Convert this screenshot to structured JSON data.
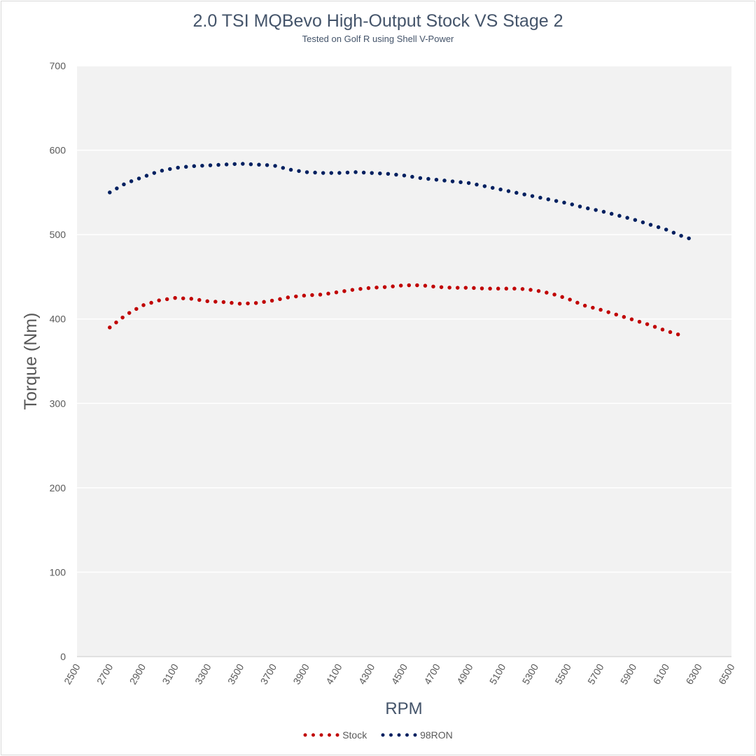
{
  "chart_data": {
    "type": "line",
    "title": "2.0 TSI MQBevo High-Output Stock VS Stage 2",
    "subtitle": "Tested on Golf R using Shell V-Power",
    "xlabel": "RPM",
    "ylabel": "Torque (Nm)",
    "xlim": [
      2500,
      6500
    ],
    "ylim": [
      0,
      700
    ],
    "xticks": [
      "2500",
      "2700",
      "2900",
      "3100",
      "3300",
      "3500",
      "3700",
      "3900",
      "4100",
      "4300",
      "4500",
      "4700",
      "4900",
      "5100",
      "5300",
      "5500",
      "5700",
      "5900",
      "6100",
      "6300",
      "6500"
    ],
    "yticks": [
      "0",
      "100",
      "200",
      "300",
      "400",
      "500",
      "600",
      "700"
    ],
    "grid": true,
    "legend_position": "bottom",
    "series": [
      {
        "name": "Stock",
        "color": "#c00000",
        "x": [
          2700,
          2800,
          2900,
          3000,
          3100,
          3200,
          3300,
          3400,
          3500,
          3600,
          3700,
          3800,
          3900,
          4000,
          4100,
          4200,
          4300,
          4400,
          4500,
          4600,
          4700,
          4800,
          4900,
          5000,
          5100,
          5200,
          5300,
          5400,
          5500,
          5600,
          5700,
          5800,
          5900,
          6000,
          6100,
          6220
        ],
        "y": [
          390,
          405,
          416,
          422,
          425,
          424,
          421,
          420,
          418,
          419,
          422,
          426,
          428,
          429,
          432,
          435,
          437,
          438,
          440,
          440,
          438,
          437,
          437,
          436,
          436,
          436,
          434,
          430,
          424,
          416,
          411,
          405,
          399,
          393,
          386,
          379
        ]
      },
      {
        "name": "98RON",
        "color": "#002060",
        "x": [
          2700,
          2800,
          2900,
          3000,
          3100,
          3200,
          3300,
          3400,
          3500,
          3600,
          3700,
          3800,
          3900,
          4000,
          4100,
          4200,
          4300,
          4400,
          4500,
          4600,
          4700,
          4800,
          4900,
          5000,
          5100,
          5200,
          5300,
          5400,
          5500,
          5600,
          5700,
          5800,
          5900,
          6000,
          6100,
          6200,
          6250
        ],
        "y": [
          550,
          561,
          568,
          575,
          579,
          581,
          582,
          583,
          584,
          583,
          582,
          577,
          574,
          573,
          573,
          574,
          573,
          572,
          570,
          567,
          565,
          563,
          561,
          557,
          553,
          549,
          545,
          541,
          537,
          532,
          528,
          523,
          518,
          512,
          506,
          498,
          495
        ]
      }
    ]
  }
}
